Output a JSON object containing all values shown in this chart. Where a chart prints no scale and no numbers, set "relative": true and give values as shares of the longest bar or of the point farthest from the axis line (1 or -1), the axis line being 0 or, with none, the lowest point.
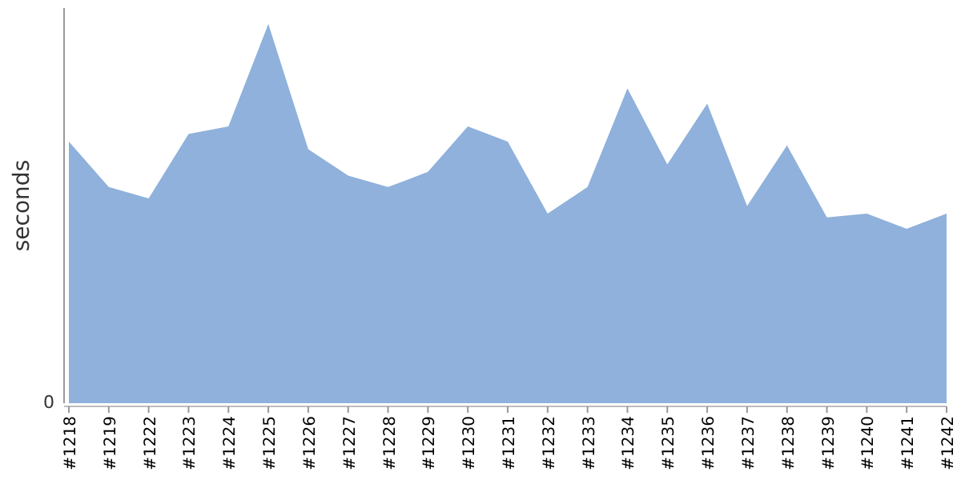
{
  "chart_data": {
    "type": "area",
    "relative": true,
    "ylabel": "seconds",
    "annotations": [
      "0"
    ],
    "categories": [
      "#1218",
      "#1219",
      "#1222",
      "#1223",
      "#1224",
      "#1225",
      "#1226",
      "#1227",
      "#1228",
      "#1229",
      "#1230",
      "#1231",
      "#1232",
      "#1233",
      "#1234",
      "#1235",
      "#1236",
      "#1237",
      "#1238",
      "#1239",
      "#1240",
      "#1241",
      "#1242"
    ],
    "series": [
      {
        "color": "#8fb1db",
        "values": [
          0.69,
          0.57,
          0.54,
          0.71,
          0.73,
          1,
          0.67,
          0.6,
          0.57,
          0.61,
          0.73,
          0.69,
          0.5,
          0.57,
          0.83,
          0.63,
          0.79,
          0.52,
          0.68,
          0.49,
          0.5,
          0.46,
          0.5
        ]
      }
    ]
  }
}
